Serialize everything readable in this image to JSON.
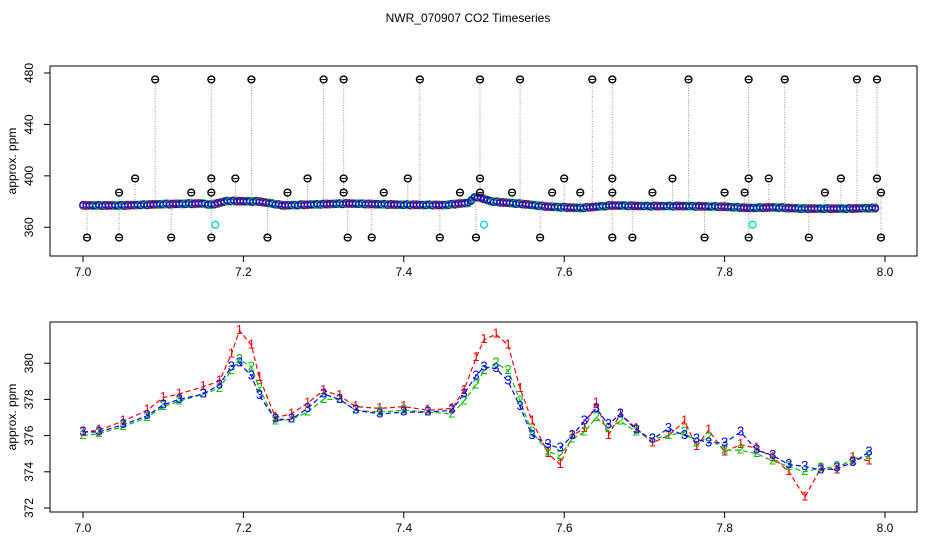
{
  "title": "NWR_070907  CO2 Timeseries",
  "colors": {
    "flask_marker": "#000000",
    "series1": "#ff0000",
    "series2": "#00c000",
    "series3": "#0000ff",
    "cyan": "#00d8d8",
    "line": "#999999"
  },
  "chart_data": [
    {
      "type": "scatter",
      "ylabel": "approx. ppm",
      "xlim": [
        7.0,
        8.0
      ],
      "ylim": [
        340,
        480
      ],
      "xticks": [
        "7.0",
        "7.2",
        "7.4",
        "7.6",
        "7.8",
        "8.0"
      ],
      "yticks": [
        "360",
        "400",
        "440",
        "480"
      ],
      "baseline_points": [
        [
          7.0,
          377
        ],
        [
          7.05,
          377
        ],
        [
          7.1,
          378
        ],
        [
          7.15,
          378.5
        ],
        [
          7.16,
          377.5
        ],
        [
          7.18,
          380.5
        ],
        [
          7.22,
          380
        ],
        [
          7.25,
          377
        ],
        [
          7.3,
          378
        ],
        [
          7.33,
          378.5
        ],
        [
          7.4,
          377.5
        ],
        [
          7.45,
          377.3
        ],
        [
          7.48,
          379
        ],
        [
          7.49,
          384
        ],
        [
          7.51,
          380
        ],
        [
          7.55,
          378
        ],
        [
          7.58,
          376
        ],
        [
          7.62,
          375
        ],
        [
          7.66,
          377
        ],
        [
          7.7,
          376.5
        ],
        [
          7.75,
          376.5
        ],
        [
          7.8,
          376
        ],
        [
          7.83,
          375
        ],
        [
          7.86,
          375.5
        ],
        [
          7.9,
          374.5
        ],
        [
          7.95,
          374.5
        ],
        [
          7.99,
          375
        ]
      ],
      "flask_high_x": [
        7.09,
        7.16,
        7.21,
        7.3,
        7.325,
        7.42,
        7.495,
        7.545,
        7.635,
        7.66,
        7.755,
        7.83,
        7.875,
        7.965,
        7.99
      ],
      "flask_high_y": 475,
      "flask_low_x": [
        7.005,
        7.045,
        7.11,
        7.16,
        7.23,
        7.33,
        7.36,
        7.445,
        7.49,
        7.57,
        7.66,
        7.685,
        7.775,
        7.83,
        7.905,
        7.995
      ],
      "flask_low_y": 352,
      "flask_mid": [
        [
          7.045,
          387
        ],
        [
          7.065,
          398
        ],
        [
          7.135,
          387
        ],
        [
          7.16,
          387
        ],
        [
          7.16,
          398
        ],
        [
          7.19,
          398
        ],
        [
          7.255,
          387
        ],
        [
          7.28,
          398
        ],
        [
          7.325,
          398
        ],
        [
          7.325,
          387
        ],
        [
          7.375,
          387
        ],
        [
          7.405,
          398
        ],
        [
          7.47,
          387
        ],
        [
          7.495,
          398
        ],
        [
          7.495,
          387
        ],
        [
          7.535,
          387
        ],
        [
          7.585,
          387
        ],
        [
          7.6,
          398
        ],
        [
          7.62,
          387
        ],
        [
          7.66,
          398
        ],
        [
          7.66,
          387
        ],
        [
          7.71,
          387
        ],
        [
          7.735,
          398
        ],
        [
          7.8,
          387
        ],
        [
          7.825,
          387
        ],
        [
          7.83,
          398
        ],
        [
          7.855,
          398
        ],
        [
          7.925,
          387
        ],
        [
          7.945,
          398
        ],
        [
          7.99,
          398
        ],
        [
          7.995,
          387
        ]
      ],
      "cyan_points": [
        [
          7.165,
          362
        ],
        [
          7.5,
          362
        ],
        [
          7.835,
          362
        ]
      ]
    },
    {
      "type": "line",
      "ylabel": "approx. ppm",
      "xlim": [
        7.0,
        8.0
      ],
      "ylim": [
        372,
        382
      ],
      "xticks": [
        "7.0",
        "7.2",
        "7.4",
        "7.6",
        "7.8",
        "8.0"
      ],
      "yticks": [
        "372",
        "374",
        "376",
        "378",
        "380"
      ],
      "series": [
        {
          "name": "1",
          "points": [
            [
              7.0,
              376.2
            ],
            [
              7.02,
              376.3
            ],
            [
              7.05,
              376.8
            ],
            [
              7.08,
              377.4
            ],
            [
              7.1,
              378.1
            ],
            [
              7.12,
              378.3
            ],
            [
              7.15,
              378.7
            ],
            [
              7.17,
              379.0
            ],
            [
              7.185,
              380.5
            ],
            [
              7.195,
              381.8
            ],
            [
              7.21,
              381.0
            ],
            [
              7.22,
              379.2
            ],
            [
              7.24,
              377.0
            ],
            [
              7.26,
              377.2
            ],
            [
              7.28,
              377.8
            ],
            [
              7.3,
              378.5
            ],
            [
              7.32,
              378.2
            ],
            [
              7.34,
              377.6
            ],
            [
              7.37,
              377.5
            ],
            [
              7.4,
              377.6
            ],
            [
              7.43,
              377.4
            ],
            [
              7.46,
              377.5
            ],
            [
              7.475,
              378.5
            ],
            [
              7.49,
              380.3
            ],
            [
              7.5,
              381.3
            ],
            [
              7.515,
              381.6
            ],
            [
              7.53,
              381.0
            ],
            [
              7.545,
              378.6
            ],
            [
              7.56,
              376.8
            ],
            [
              7.58,
              375.0
            ],
            [
              7.595,
              374.4
            ],
            [
              7.61,
              376.0
            ],
            [
              7.625,
              376.4
            ],
            [
              7.64,
              377.8
            ],
            [
              7.655,
              376.0
            ],
            [
              7.67,
              377.2
            ],
            [
              7.69,
              376.4
            ],
            [
              7.71,
              375.6
            ],
            [
              7.73,
              376.0
            ],
            [
              7.75,
              376.8
            ],
            [
              7.765,
              375.4
            ],
            [
              7.78,
              376.3
            ],
            [
              7.8,
              375.1
            ],
            [
              7.82,
              375.5
            ],
            [
              7.84,
              375.3
            ],
            [
              7.86,
              374.8
            ],
            [
              7.88,
              374.0
            ],
            [
              7.9,
              372.6
            ],
            [
              7.92,
              374.2
            ],
            [
              7.94,
              374.1
            ],
            [
              7.96,
              374.8
            ],
            [
              7.98,
              374.6
            ]
          ]
        },
        {
          "name": "2",
          "points": [
            [
              7.0,
              376.0
            ],
            [
              7.02,
              376.1
            ],
            [
              7.05,
              376.5
            ],
            [
              7.08,
              377.0
            ],
            [
              7.1,
              377.6
            ],
            [
              7.12,
              377.9
            ],
            [
              7.15,
              378.3
            ],
            [
              7.17,
              378.6
            ],
            [
              7.185,
              379.6
            ],
            [
              7.195,
              380.2
            ],
            [
              7.21,
              379.8
            ],
            [
              7.22,
              378.6
            ],
            [
              7.24,
              376.8
            ],
            [
              7.26,
              376.9
            ],
            [
              7.28,
              377.3
            ],
            [
              7.3,
              378.0
            ],
            [
              7.32,
              378.0
            ],
            [
              7.34,
              377.4
            ],
            [
              7.37,
              377.3
            ],
            [
              7.4,
              377.4
            ],
            [
              7.43,
              377.3
            ],
            [
              7.46,
              377.2
            ],
            [
              7.475,
              377.9
            ],
            [
              7.49,
              378.8
            ],
            [
              7.5,
              379.6
            ],
            [
              7.515,
              380.0
            ],
            [
              7.53,
              379.6
            ],
            [
              7.545,
              377.9
            ],
            [
              7.56,
              376.2
            ],
            [
              7.58,
              375.1
            ],
            [
              7.595,
              374.9
            ],
            [
              7.61,
              375.8
            ],
            [
              7.625,
              376.2
            ],
            [
              7.64,
              377.0
            ],
            [
              7.655,
              376.4
            ],
            [
              7.67,
              376.8
            ],
            [
              7.69,
              376.2
            ],
            [
              7.71,
              375.8
            ],
            [
              7.73,
              376.0
            ],
            [
              7.75,
              376.2
            ],
            [
              7.765,
              375.6
            ],
            [
              7.78,
              375.9
            ],
            [
              7.8,
              375.2
            ],
            [
              7.82,
              375.2
            ],
            [
              7.84,
              375.0
            ],
            [
              7.86,
              374.6
            ],
            [
              7.88,
              374.3
            ],
            [
              7.9,
              374.0
            ],
            [
              7.92,
              374.2
            ],
            [
              7.94,
              374.3
            ],
            [
              7.96,
              374.6
            ],
            [
              7.98,
              374.9
            ]
          ]
        },
        {
          "name": "3",
          "points": [
            [
              7.0,
              376.2
            ],
            [
              7.02,
              376.2
            ],
            [
              7.05,
              376.6
            ],
            [
              7.08,
              377.1
            ],
            [
              7.1,
              377.7
            ],
            [
              7.12,
              378.0
            ],
            [
              7.15,
              378.3
            ],
            [
              7.17,
              378.8
            ],
            [
              7.185,
              379.8
            ],
            [
              7.195,
              380.0
            ],
            [
              7.21,
              379.3
            ],
            [
              7.22,
              378.2
            ],
            [
              7.24,
              376.9
            ],
            [
              7.26,
              376.9
            ],
            [
              7.28,
              377.5
            ],
            [
              7.3,
              378.3
            ],
            [
              7.32,
              378.0
            ],
            [
              7.34,
              377.4
            ],
            [
              7.37,
              377.2
            ],
            [
              7.4,
              377.3
            ],
            [
              7.43,
              377.3
            ],
            [
              7.46,
              377.4
            ],
            [
              7.475,
              378.3
            ],
            [
              7.49,
              379.3
            ],
            [
              7.5,
              379.8
            ],
            [
              7.515,
              379.7
            ],
            [
              7.53,
              379.0
            ],
            [
              7.545,
              377.6
            ],
            [
              7.56,
              376.0
            ],
            [
              7.58,
              375.5
            ],
            [
              7.595,
              375.3
            ],
            [
              7.61,
              376.0
            ],
            [
              7.625,
              376.8
            ],
            [
              7.64,
              377.5
            ],
            [
              7.655,
              376.6
            ],
            [
              7.67,
              377.2
            ],
            [
              7.69,
              376.3
            ],
            [
              7.71,
              375.8
            ],
            [
              7.73,
              376.4
            ],
            [
              7.75,
              376.0
            ],
            [
              7.765,
              375.8
            ],
            [
              7.78,
              375.6
            ],
            [
              7.8,
              375.6
            ],
            [
              7.82,
              376.2
            ],
            [
              7.84,
              375.2
            ],
            [
              7.86,
              374.9
            ],
            [
              7.88,
              374.4
            ],
            [
              7.9,
              374.3
            ],
            [
              7.92,
              374.1
            ],
            [
              7.94,
              374.2
            ],
            [
              7.96,
              374.5
            ],
            [
              7.98,
              375.1
            ]
          ]
        }
      ]
    }
  ]
}
